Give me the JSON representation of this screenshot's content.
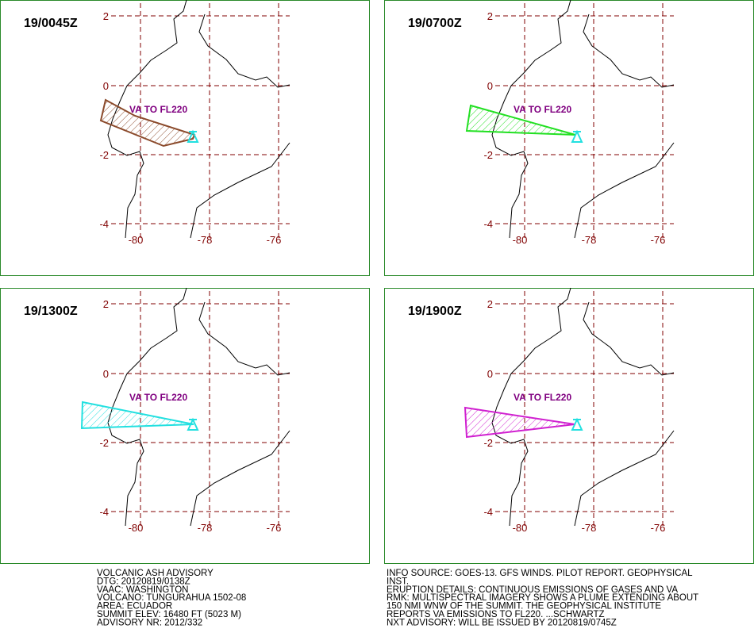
{
  "panels": [
    {
      "time": "19/0045Z",
      "annotation": "VA TO FL220",
      "plume_color": "#8b4a2b"
    },
    {
      "time": "19/0700Z",
      "annotation": "VA TO FL220",
      "plume_color": "#22e022"
    },
    {
      "time": "19/1300Z",
      "annotation": "VA TO FL220",
      "plume_color": "#22e0e0"
    },
    {
      "time": "19/1900Z",
      "annotation": "VA TO FL220",
      "plume_color": "#d020d0"
    }
  ],
  "grid": {
    "lat_labels": [
      "2",
      "0",
      "-2",
      "-4"
    ],
    "lon_labels": [
      "-80",
      "-78",
      "-76"
    ]
  },
  "footer": {
    "left": [
      "VOLCANIC ASH ADVISORY",
      "DTG: 20120819/0138Z",
      "VAAC: WASHINGTON",
      "VOLCANO: TUNGURAHUA 1502-08",
      "AREA: ECUADOR",
      "SUMMIT ELEV: 16480 FT (5023 M)",
      "ADVISORY NR: 2012/332"
    ],
    "right": [
      "INFO SOURCE: GOES-13. GFS WINDS. PILOT REPORT. GEOPHYSICAL",
      "INST.",
      "ERUPTION DETAILS: CONTINUOUS EMISSIONS OF GASES AND VA",
      "RMK: MULTISPECTRAL IMAGERY SHOWS A PLUME EXTENDING ABOUT",
      "150 NMI WNW OF THE SUMMIT. THE GEOPHYSICAL INSTITUTE",
      "REPORTS VA EMISSIONS TO FL220. ...SCHWARTZ",
      "NXT ADVISORY: WILL BE ISSUED BY 20120819/0745Z"
    ]
  }
}
